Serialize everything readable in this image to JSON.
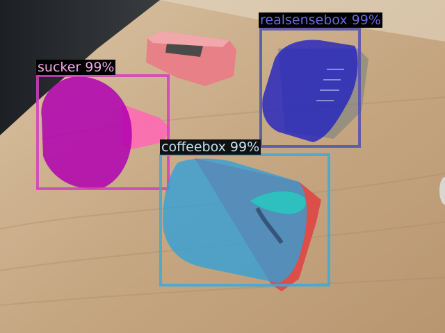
{
  "detections": [
    {
      "label": "sucker",
      "score": "99%",
      "color": "#d040c0",
      "mask_color": "#b000b0"
    },
    {
      "label": "realsensebox",
      "score": "99%",
      "color": "#5050b0",
      "mask_color": "#2020c0"
    },
    {
      "label": "coffeebox",
      "score": "99%",
      "color": "#40a8d8",
      "mask_color": "#30a0d8"
    }
  ],
  "labels": {
    "sucker": "sucker 99%",
    "realsensebox": "realsensebox 99%",
    "coffeebox": "coffeebox 99%"
  }
}
